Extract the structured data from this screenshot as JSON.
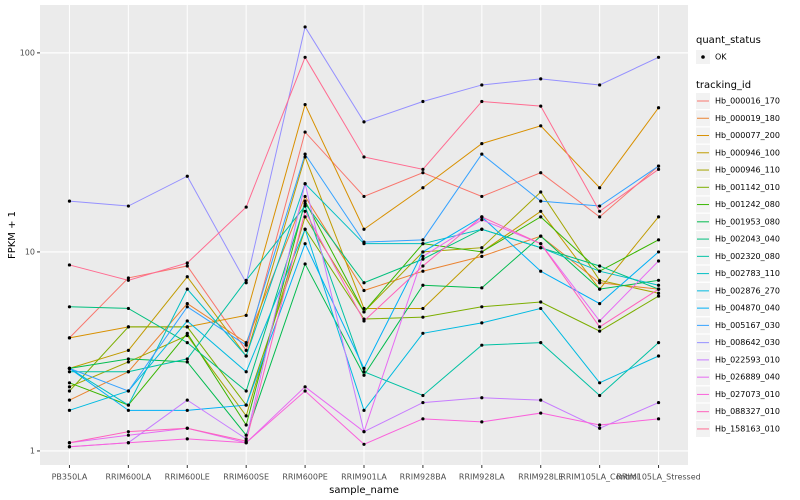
{
  "chart_data": {
    "type": "line",
    "log_y": true,
    "grid": true,
    "x_label": "sample_name",
    "y_label": "FPKM + 1",
    "categories": [
      "PB350LA",
      "RRIM600LA",
      "RRIM600LE",
      "RRIM600SE",
      "RRIM600PE",
      "RRIM901LA",
      "RRIM928BA",
      "RRIM928LA",
      "RRIM928LE",
      "RRIM105LA_Control",
      "RRIM105LA_Stressed"
    ],
    "ylim": [
      0.85,
      174
    ],
    "yticks": [
      1,
      10,
      100
    ],
    "point_legend_title": "quant_status",
    "point_legend_label": "OK",
    "point_color": "#000000",
    "legend_title": "tracking_id",
    "series": [
      {
        "name": "Hb_000016_170",
        "color": "#F8766D",
        "values": [
          3.7,
          7.4,
          8.5,
          3.2,
          40,
          19,
          25,
          19,
          25,
          15,
          27
        ]
      },
      {
        "name": "Hb_000019_180",
        "color": "#EA8331",
        "values": [
          1.8,
          2.5,
          5.5,
          3.5,
          19,
          6.4,
          8,
          9.5,
          12,
          7,
          6.5
        ]
      },
      {
        "name": "Hb_000077_200",
        "color": "#D89000",
        "values": [
          3.7,
          4.2,
          4.2,
          4.8,
          55,
          13,
          21,
          35,
          43,
          21,
          53
        ]
      },
      {
        "name": "Hb_000946_100",
        "color": "#C09B00",
        "values": [
          2.6,
          3.2,
          7.5,
          3,
          30,
          5.2,
          5.2,
          10,
          16,
          6.5,
          15
        ]
      },
      {
        "name": "Hb_000946_110",
        "color": "#A3A500",
        "values": [
          2.1,
          2.8,
          3.8,
          1.5,
          15,
          5,
          10,
          10.5,
          20,
          7.2,
          6.2
        ]
      },
      {
        "name": "Hb_001142_010",
        "color": "#7CAE00",
        "values": [
          2,
          4.2,
          4.2,
          1.7,
          13,
          4.6,
          4.7,
          5.3,
          5.6,
          4,
          6
        ]
      },
      {
        "name": "Hb_001242_080",
        "color": "#39B600",
        "values": [
          2.2,
          1.7,
          3.9,
          1.35,
          18,
          5,
          11,
          10,
          15,
          8,
          11.5
        ]
      },
      {
        "name": "Hb_001953_080",
        "color": "#00BB4E",
        "values": [
          2.6,
          2.9,
          2.8,
          1.2,
          8.7,
          2.4,
          6.8,
          6.6,
          12,
          6.5,
          7.2
        ]
      },
      {
        "name": "Hb_002043_040",
        "color": "#00BF7D",
        "values": [
          5.3,
          5.2,
          3.5,
          2,
          17.5,
          7,
          9.2,
          13,
          10.5,
          8.5,
          6.5
        ]
      },
      {
        "name": "Hb_002320_080",
        "color": "#00C1A3",
        "values": [
          2.5,
          2.5,
          2.9,
          7.2,
          17,
          2.5,
          1.9,
          3.4,
          3.5,
          1.9,
          3.5
        ]
      },
      {
        "name": "Hb_002783_110",
        "color": "#00BFC4",
        "values": [
          2.6,
          1.7,
          6.5,
          3,
          22,
          11,
          11,
          13,
          10.5,
          8,
          6.8
        ]
      },
      {
        "name": "Hb_002876_270",
        "color": "#00BAE0",
        "values": [
          1.6,
          2,
          4.5,
          2.5,
          13,
          1.6,
          3.9,
          4.4,
          5.2,
          2.2,
          3
        ]
      },
      {
        "name": "Hb_004870_040",
        "color": "#00B0F6",
        "values": [
          2.6,
          1.6,
          1.6,
          1.7,
          11,
          2.6,
          10,
          15,
          8,
          5.5,
          10
        ]
      },
      {
        "name": "Hb_005167_030",
        "color": "#35A2FF",
        "values": [
          2.6,
          2,
          5.3,
          3.4,
          31,
          11.2,
          11.5,
          31,
          18,
          17,
          27
        ]
      },
      {
        "name": "Hb_008642_030",
        "color": "#9590FF",
        "values": [
          18,
          17,
          24,
          7,
          135,
          45,
          57,
          69,
          74,
          69,
          95
        ]
      },
      {
        "name": "Hb_022593_010",
        "color": "#C77CFF",
        "values": [
          1.05,
          1.1,
          1.8,
          1.15,
          22,
          1.25,
          1.75,
          1.85,
          1.8,
          1.3,
          1.75
        ]
      },
      {
        "name": "Hb_026889_040",
        "color": "#E76BF3",
        "values": [
          1.1,
          1.2,
          1.3,
          1.1,
          2.1,
          1.25,
          9.5,
          14.5,
          11,
          4.5,
          9
        ]
      },
      {
        "name": "Hb_027073_010",
        "color": "#FA62DB",
        "values": [
          1.05,
          1.1,
          1.15,
          1.1,
          2,
          1.08,
          1.45,
          1.4,
          1.55,
          1.35,
          1.45
        ]
      },
      {
        "name": "Hb_088327_010",
        "color": "#FF62BC",
        "values": [
          1.1,
          1.25,
          1.3,
          1.12,
          16,
          4.5,
          8.5,
          15,
          11,
          4.2,
          6.5
        ]
      },
      {
        "name": "Hb_158163_010",
        "color": "#FF6C91",
        "values": [
          8.6,
          7.2,
          8.8,
          16.8,
          95,
          30,
          26,
          57,
          54,
          16,
          26
        ]
      }
    ]
  }
}
